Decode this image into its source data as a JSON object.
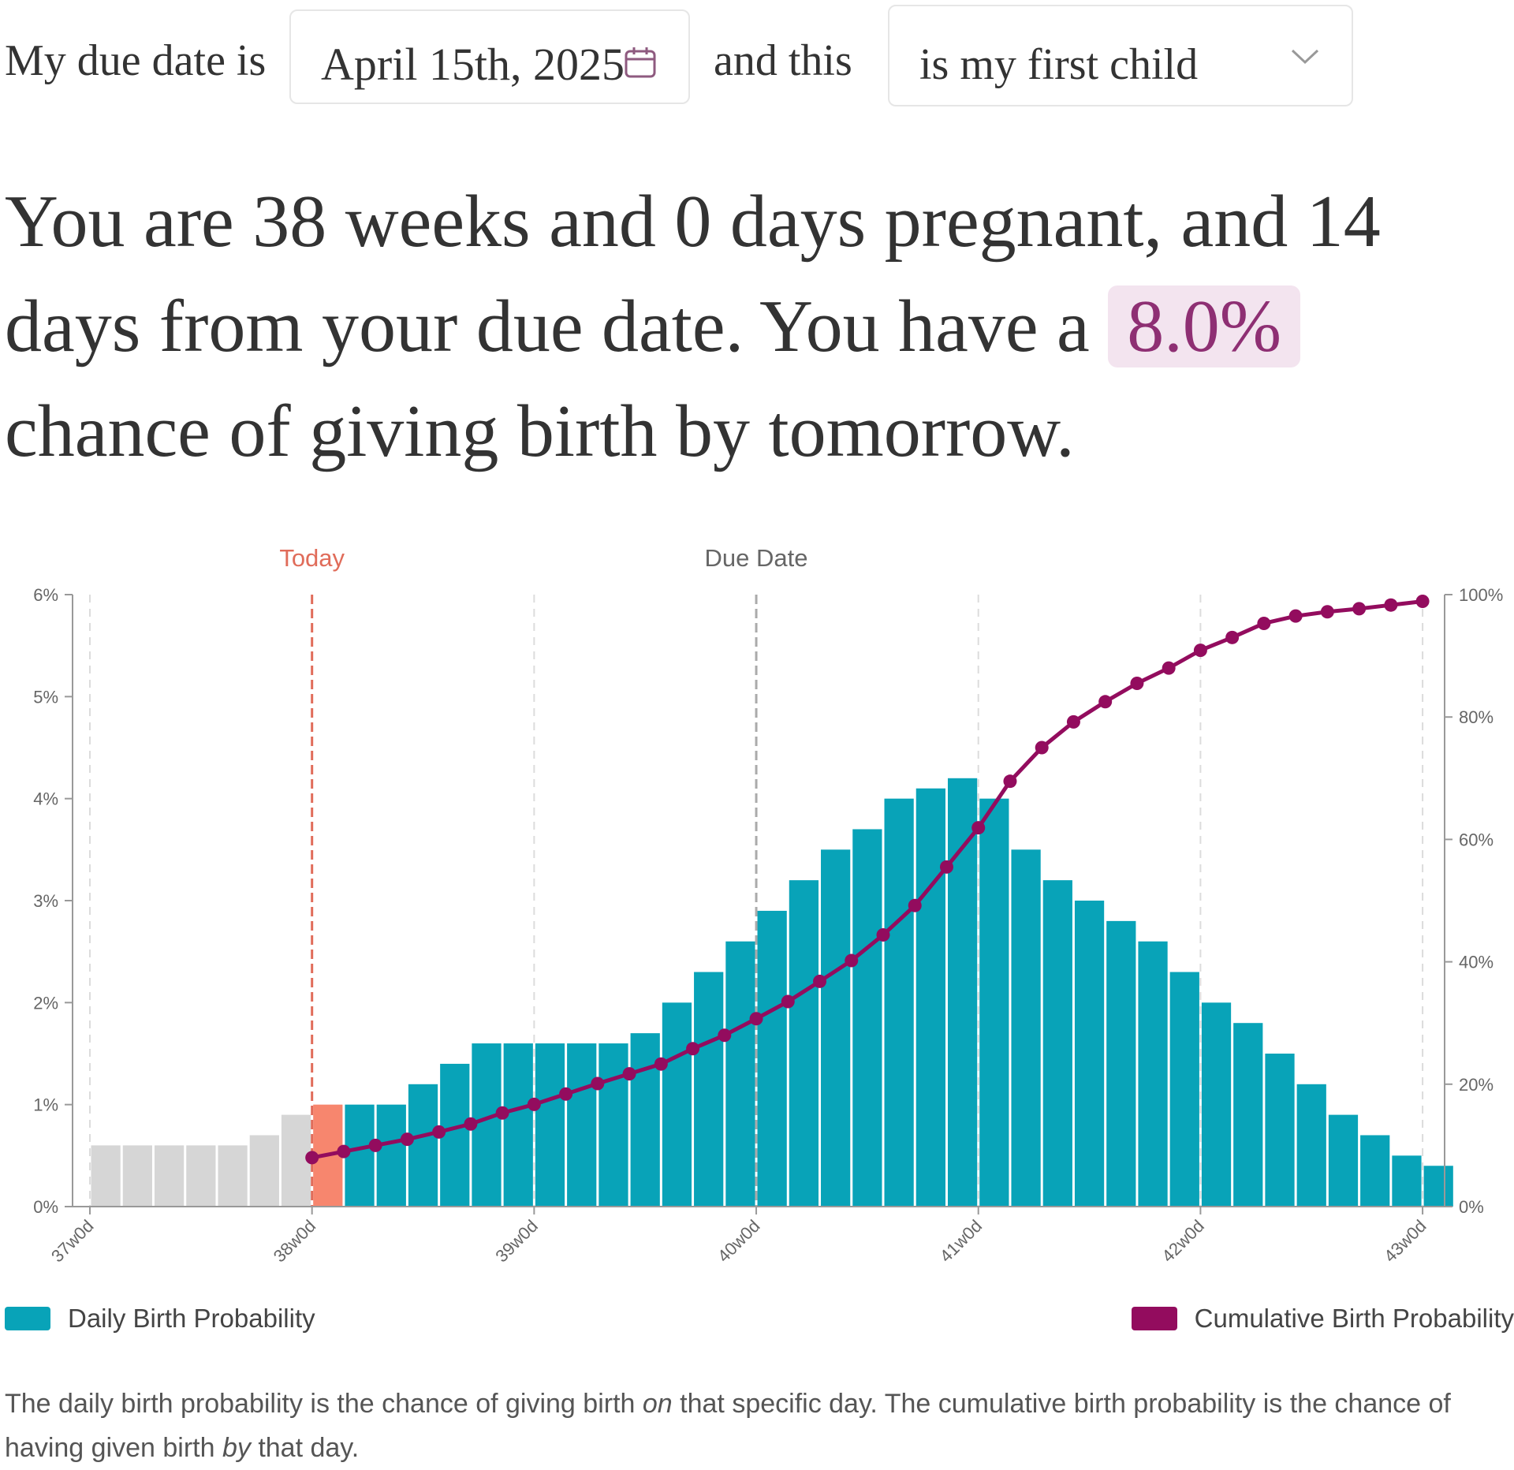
{
  "controls": {
    "due_prefix": "My due date is",
    "due_date": "April 15th, 2025",
    "connector": "and this",
    "child_select": "is my first child"
  },
  "headline": {
    "part1": "You are 38 weeks and 0 days pregnant, and 14 days from your due date. You have a ",
    "chance": "8.0%",
    "part2": " chance of giving birth by tomorrow."
  },
  "colors": {
    "daily": "#08a3b8",
    "past": "#d6d6d6",
    "today_bar": "#f7866e",
    "today_line": "#e06c5a",
    "cumulative": "#930c5e",
    "due_line": "#aaaaaa",
    "highlight_text": "#8e2f73",
    "highlight_bg": "#f3e4ef"
  },
  "chart_data": {
    "type": "bar",
    "title": "",
    "xlabel": "",
    "ylabel": "",
    "ylim": [
      0,
      6
    ],
    "y2lim": [
      0,
      100
    ],
    "y_ticks": [
      "0%",
      "1%",
      "2%",
      "3%",
      "4%",
      "5%",
      "6%"
    ],
    "y2_ticks": [
      "0%",
      "20%",
      "40%",
      "60%",
      "80%",
      "100%"
    ],
    "x_ticks": [
      "37w0d",
      "38w0d",
      "39w0d",
      "40w0d",
      "41w0d",
      "42w0d",
      "43w0d"
    ],
    "markers": {
      "today": "Today",
      "due_date": "Due Date"
    },
    "grid": "vertical dashed at week ticks",
    "legend": "bottom",
    "series": [
      {
        "name": "Daily Birth Probability",
        "type": "bar",
        "values": [
          0.6,
          0.6,
          0.6,
          0.6,
          0.6,
          0.7,
          0.9,
          1.0,
          1.0,
          1.0,
          1.2,
          1.4,
          1.6,
          1.6,
          1.6,
          1.6,
          1.6,
          1.7,
          2.0,
          2.3,
          2.6,
          2.9,
          3.2,
          3.5,
          3.7,
          4.0,
          4.1,
          4.2,
          4.0,
          3.5,
          3.2,
          3.0,
          2.8,
          2.6,
          2.3,
          2.0,
          1.8,
          1.5,
          1.2,
          0.9,
          0.7,
          0.5,
          0.4
        ]
      },
      {
        "name": "Cumulative Birth Probability",
        "type": "line",
        "axis": "right",
        "start_day": 7,
        "values": [
          8.0,
          9.0,
          10.0,
          11.0,
          12.2,
          13.5,
          15.3,
          16.7,
          18.4,
          20.1,
          21.7,
          23.3,
          25.8,
          28.0,
          30.7,
          33.5,
          36.8,
          40.2,
          44.4,
          49.2,
          55.5,
          61.9,
          69.5,
          75.0,
          79.2,
          82.5,
          85.5,
          88.0,
          90.9,
          93.0,
          95.3,
          96.5,
          97.2,
          97.7,
          98.3,
          98.9
        ]
      }
    ]
  },
  "legend": {
    "daily": "Daily Birth Probability",
    "cumulative": "Cumulative Birth Probability"
  },
  "note": {
    "t1": "The daily birth probability is the chance of giving birth ",
    "e1": "on",
    "t2": " that specific day. The cumulative birth probability is the chance of having given birth ",
    "e2": "by",
    "t3": " that day."
  }
}
